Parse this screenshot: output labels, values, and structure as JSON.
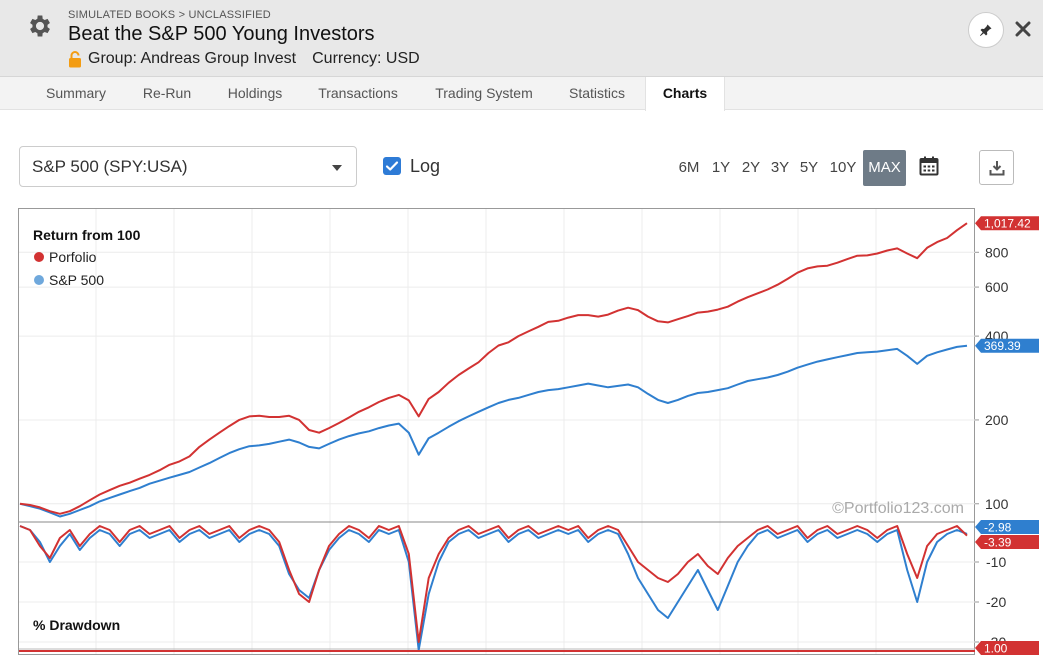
{
  "header": {
    "breadcrumb": "SIMULATED BOOKS > UNCLASSIFIED",
    "title": "Beat the S&P 500 Young Investors",
    "group": "Group: Andreas Group Invest",
    "currency": "Currency: USD"
  },
  "icons": {
    "settings": "gear-icon",
    "group": "lock-open-icon",
    "pin": "pin-icon",
    "close": "close-icon",
    "calendar": "calendar-icon",
    "download": "download-icon"
  },
  "tabs": [
    "Summary",
    "Re-Run",
    "Holdings",
    "Transactions",
    "Trading System",
    "Statistics",
    "Charts"
  ],
  "active_tab": "Charts",
  "controls": {
    "benchmark": "S&P 500 (SPY:USA)",
    "log_label": "Log",
    "log_checked": true,
    "ranges": [
      "6M",
      "1Y",
      "2Y",
      "3Y",
      "5Y",
      "10Y",
      "MAX"
    ],
    "active_range": "MAX"
  },
  "colors": {
    "portfolio": "#d23232",
    "benchmark": "#2f7fcf",
    "accent": "#2e7bd6",
    "active_range_bg": "#6e7b87"
  },
  "chart_data": [
    {
      "type": "line",
      "title": "Return from 100",
      "scale": "log",
      "ylim": [
        86,
        1080
      ],
      "y_ticks": [
        100,
        200,
        400,
        600,
        800
      ],
      "grid": true,
      "legend_position": "top-left",
      "watermark": "©Portfolio123.com",
      "x": [
        0,
        10,
        20,
        30,
        40,
        50,
        60,
        70,
        80,
        90,
        100,
        110,
        120,
        130,
        140,
        150,
        160,
        170,
        180,
        190,
        200,
        210,
        220,
        230,
        240,
        250,
        260,
        270,
        280,
        290,
        300,
        310,
        320,
        330,
        340,
        350,
        360,
        370,
        380,
        390,
        400,
        410,
        420,
        430,
        440,
        450,
        460,
        470,
        480,
        490,
        500,
        510,
        520,
        530,
        540,
        550,
        560,
        570,
        580,
        590,
        600,
        610,
        620,
        630,
        640,
        650,
        660,
        670,
        680,
        690,
        700,
        710,
        720,
        730,
        740,
        750,
        760,
        770,
        780,
        790,
        800,
        810,
        820,
        830,
        840,
        850,
        860,
        870,
        880,
        890,
        900,
        910,
        920,
        930,
        940,
        950
      ],
      "series": [
        {
          "name": "Porfolio",
          "last_value": "1,017.42",
          "values": [
            100,
            99,
            97,
            94,
            92,
            94,
            98,
            103,
            108,
            112,
            116,
            119,
            123,
            127,
            132,
            138,
            142,
            148,
            160,
            170,
            180,
            190,
            200,
            206,
            207,
            205,
            205,
            207,
            200,
            184,
            180,
            187,
            195,
            204,
            214,
            222,
            232,
            240,
            246,
            235,
            206,
            238,
            252,
            272,
            290,
            306,
            322,
            348,
            370,
            380,
            400,
            416,
            432,
            450,
            454,
            466,
            476,
            476,
            470,
            478,
            494,
            506,
            496,
            470,
            452,
            448,
            460,
            472,
            486,
            490,
            498,
            510,
            532,
            552,
            570,
            588,
            612,
            642,
            676,
            700,
            712,
            716,
            734,
            756,
            778,
            780,
            792,
            812,
            826,
            792,
            762,
            830,
            870,
            900,
            960,
            1017.42
          ]
        },
        {
          "name": "S&P 500",
          "last_value": "369.39",
          "values": [
            100,
            98,
            96,
            93,
            90,
            92,
            95,
            98,
            102,
            105,
            108,
            111,
            114,
            118,
            121,
            124,
            127,
            130,
            135,
            140,
            146,
            152,
            157,
            161,
            162,
            164,
            167,
            170,
            166,
            160,
            158,
            164,
            170,
            175,
            179,
            182,
            187,
            191,
            194,
            180,
            150,
            172,
            180,
            189,
            198,
            206,
            214,
            222,
            230,
            236,
            240,
            246,
            252,
            256,
            258,
            262,
            266,
            270,
            266,
            262,
            265,
            268,
            262,
            248,
            236,
            230,
            236,
            244,
            250,
            252,
            256,
            260,
            268,
            276,
            280,
            284,
            290,
            298,
            308,
            316,
            324,
            330,
            336,
            342,
            348,
            350,
            352,
            356,
            360,
            340,
            318,
            340,
            350,
            358,
            366,
            369.39
          ]
        }
      ]
    },
    {
      "type": "area",
      "title": "% Drawdown",
      "ylim": [
        -33,
        0
      ],
      "y_ticks": [
        -10,
        -20,
        -30
      ],
      "x": [
        0,
        10,
        20,
        30,
        40,
        50,
        60,
        70,
        80,
        90,
        100,
        110,
        120,
        130,
        140,
        150,
        160,
        170,
        180,
        190,
        200,
        210,
        220,
        230,
        240,
        250,
        260,
        270,
        280,
        290,
        300,
        310,
        320,
        330,
        340,
        350,
        360,
        370,
        380,
        390,
        400,
        410,
        420,
        430,
        440,
        450,
        460,
        470,
        480,
        490,
        500,
        510,
        520,
        530,
        540,
        550,
        560,
        570,
        580,
        590,
        600,
        610,
        620,
        630,
        640,
        650,
        660,
        670,
        680,
        690,
        700,
        710,
        720,
        730,
        740,
        750,
        760,
        770,
        780,
        790,
        800,
        810,
        820,
        830,
        840,
        850,
        860,
        870,
        880,
        890,
        900,
        910,
        920,
        930,
        940,
        950
      ],
      "series": [
        {
          "name": "Porfolio",
          "last_value": "-3.39",
          "values": [
            -1,
            -2,
            -6,
            -9,
            -4,
            -2,
            -6,
            -3,
            -1,
            -2,
            -5,
            -2,
            -1,
            -3,
            -2,
            -1,
            -4,
            -2,
            -1,
            -3,
            -2,
            -1,
            -4,
            -2,
            -1,
            -2,
            -5,
            -12,
            -18,
            -20,
            -12,
            -6,
            -3,
            -1,
            -2,
            -4,
            -1,
            -2,
            -1,
            -8,
            -30,
            -14,
            -8,
            -4,
            -2,
            -1,
            -3,
            -2,
            -1,
            -4,
            -2,
            -1,
            -3,
            -2,
            -1,
            -2,
            -1,
            -4,
            -2,
            -1,
            -2,
            -6,
            -10,
            -12,
            -14,
            -15,
            -13,
            -10,
            -8,
            -11,
            -13,
            -9,
            -6,
            -4,
            -2,
            -1,
            -3,
            -2,
            -1,
            -4,
            -2,
            -1,
            -3,
            -2,
            -1,
            -2,
            -4,
            -2,
            -1,
            -8,
            -14,
            -6,
            -3,
            -2,
            -1,
            -3.39
          ]
        },
        {
          "name": "S&P 500",
          "last_value": "-2.98",
          "values": [
            -1,
            -2,
            -5,
            -10,
            -6,
            -3,
            -7,
            -4,
            -2,
            -3,
            -6,
            -3,
            -2,
            -4,
            -3,
            -2,
            -5,
            -3,
            -2,
            -4,
            -3,
            -2,
            -5,
            -3,
            -2,
            -3,
            -6,
            -13,
            -17,
            -19,
            -12,
            -7,
            -4,
            -2,
            -3,
            -5,
            -2,
            -3,
            -2,
            -10,
            -32,
            -18,
            -10,
            -5,
            -3,
            -2,
            -4,
            -3,
            -2,
            -5,
            -3,
            -2,
            -4,
            -3,
            -2,
            -3,
            -2,
            -5,
            -3,
            -2,
            -3,
            -8,
            -14,
            -18,
            -22,
            -24,
            -20,
            -16,
            -12,
            -17,
            -22,
            -16,
            -10,
            -6,
            -3,
            -2,
            -4,
            -3,
            -2,
            -5,
            -3,
            -2,
            -4,
            -3,
            -2,
            -3,
            -5,
            -3,
            -2,
            -12,
            -20,
            -10,
            -5,
            -3,
            -2,
            -2.98
          ]
        }
      ]
    },
    {
      "type": "line",
      "title": "",
      "series": [
        {
          "name": "Porfolio",
          "last_value": "1.00"
        }
      ]
    }
  ]
}
